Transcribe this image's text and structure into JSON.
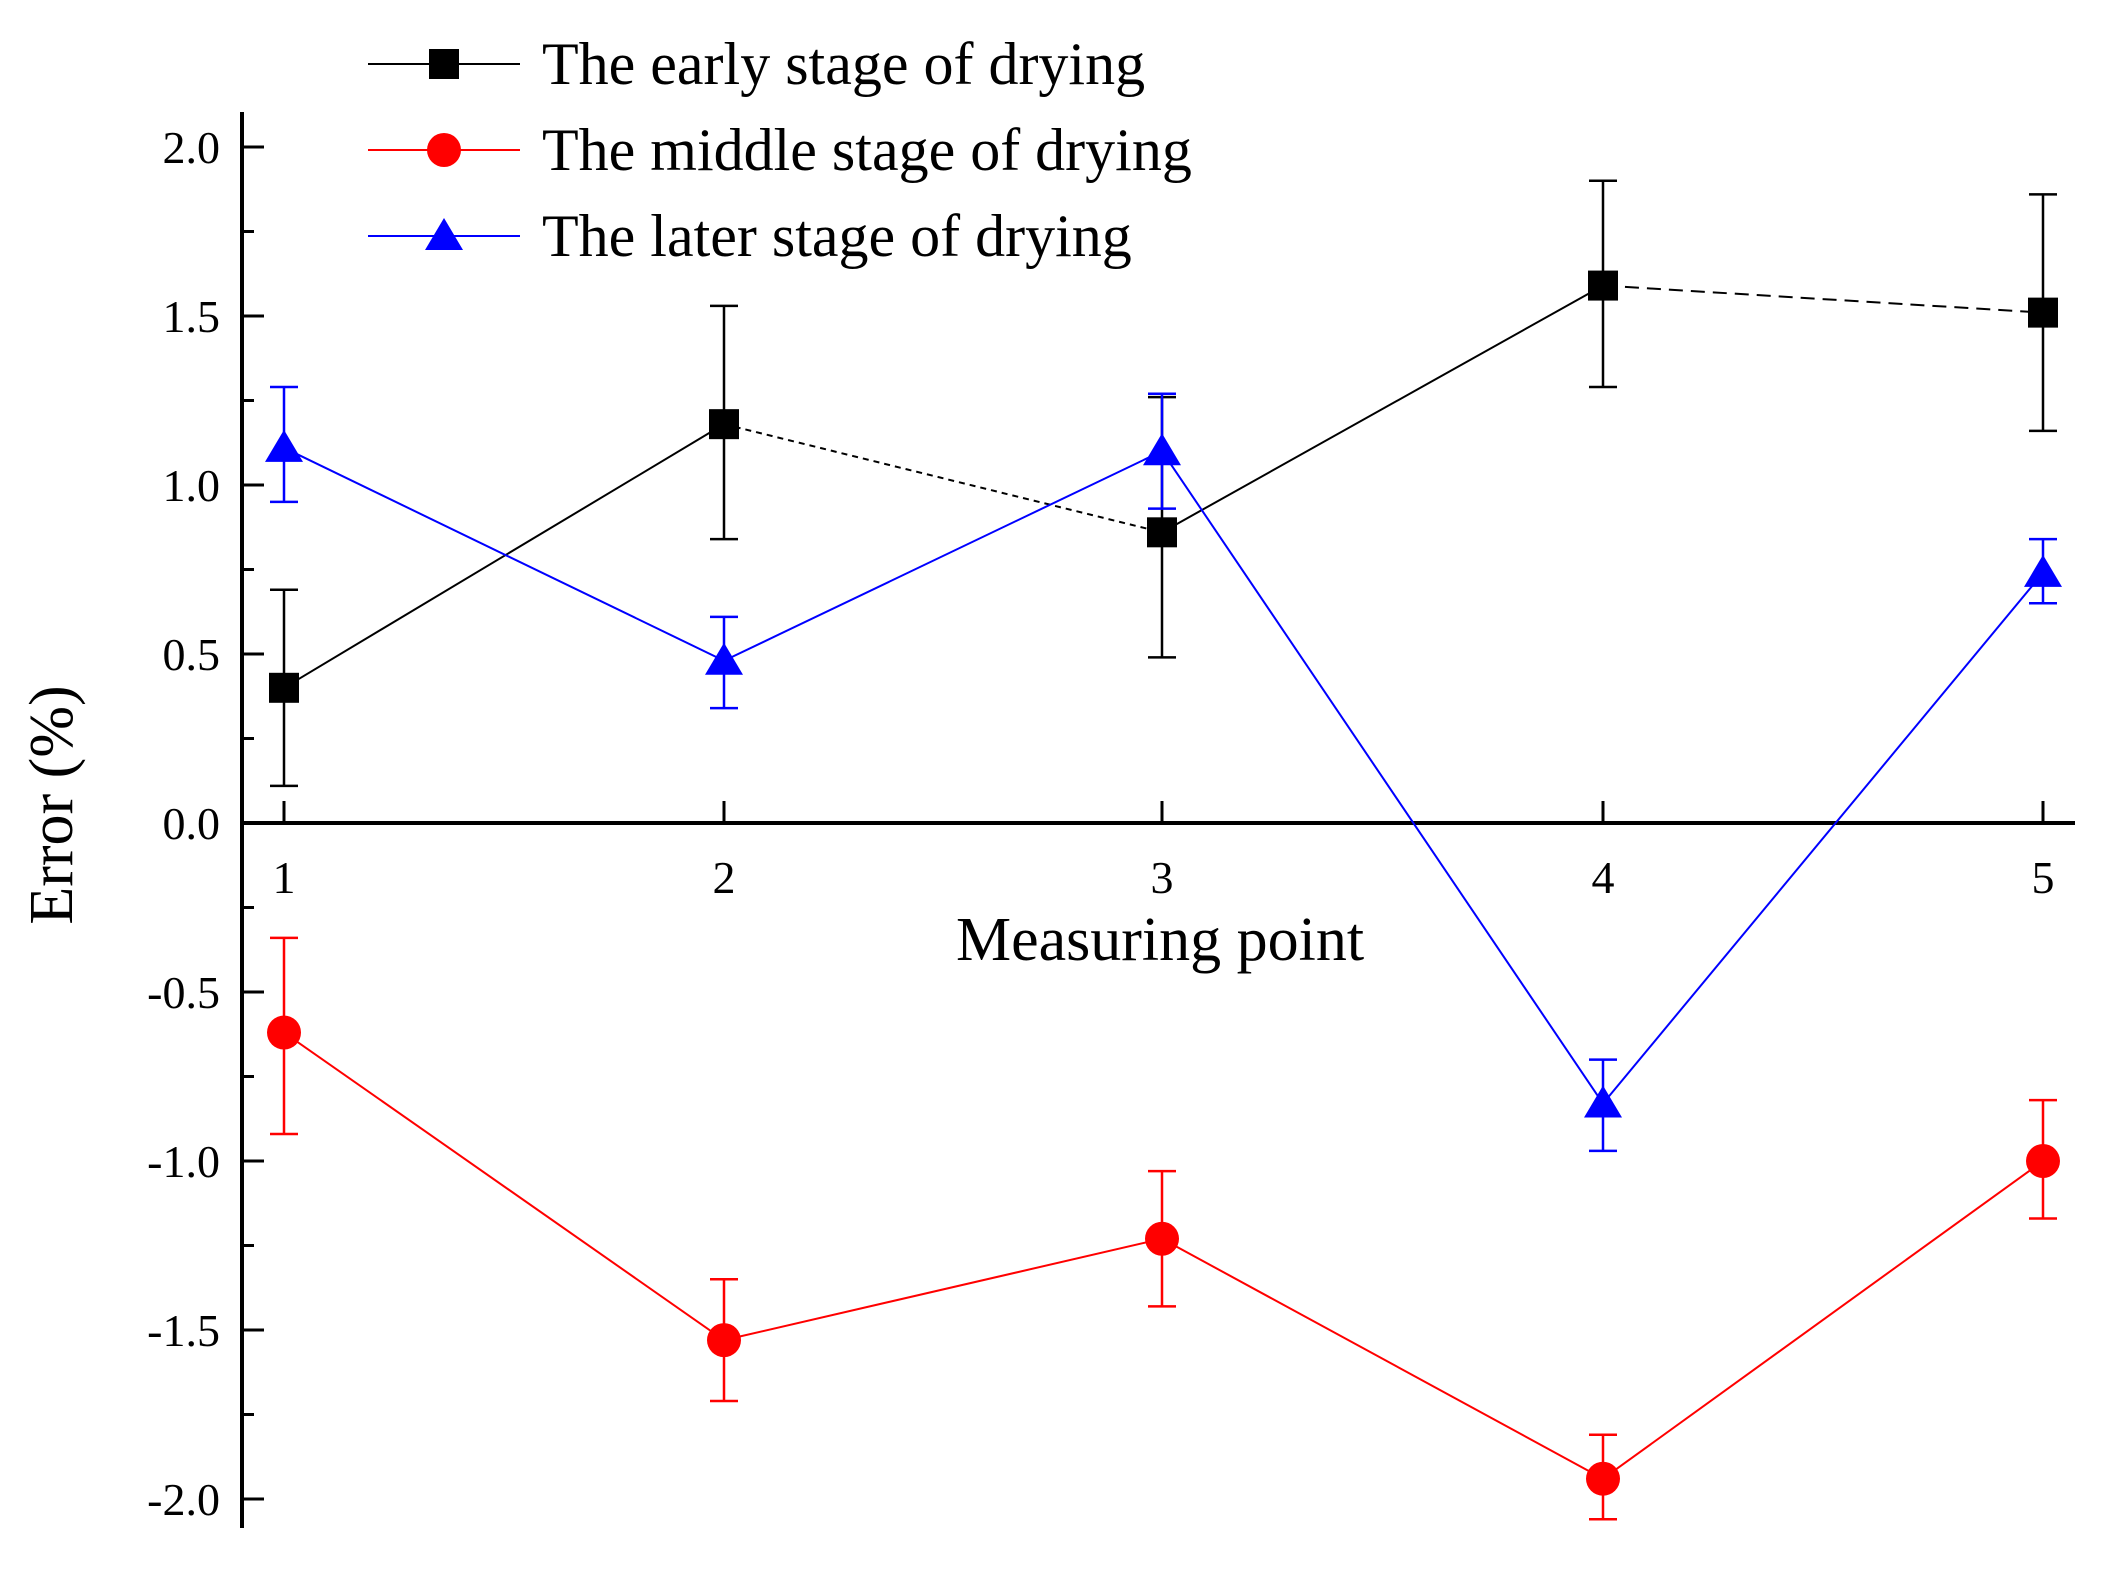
{
  "chart_data": {
    "type": "line",
    "xlabel": "Measuring point",
    "ylabel": "Error (%)",
    "x": [
      1,
      2,
      3,
      4,
      5
    ],
    "x_tick_labels": [
      "1",
      "2",
      "3",
      "4",
      "5"
    ],
    "y_ticks": [
      2.0,
      1.5,
      1.0,
      0.5,
      0.0,
      -0.5,
      -1.0,
      -1.5,
      -2.0
    ],
    "y_tick_labels": [
      "2.0",
      "1.5",
      "1.0",
      "0.5",
      "0.0",
      "-0.5",
      "-1.0",
      "-1.5",
      "-2.0"
    ],
    "ylim": [
      -2.1,
      2.1
    ],
    "xlim": [
      0.9,
      5.1
    ],
    "grid": false,
    "legend_position": "top-left",
    "error_bars": true,
    "series": [
      {
        "name": "The early stage of drying",
        "color": "#000000",
        "marker": "square",
        "line_style": "mixed solid/dashed",
        "values": [
          0.4,
          1.18,
          0.86,
          1.59,
          1.51
        ],
        "error_upper": [
          0.69,
          1.53,
          1.26,
          1.9,
          1.86
        ],
        "error_lower": [
          0.11,
          0.84,
          0.49,
          1.29,
          1.16
        ]
      },
      {
        "name": "The middle stage of drying",
        "color": "#ff0000",
        "marker": "circle",
        "line_style": "solid",
        "values": [
          -0.62,
          -1.53,
          -1.23,
          -1.94,
          -1.0
        ],
        "error_upper": [
          -0.34,
          -1.35,
          -1.03,
          -1.81,
          -0.82
        ],
        "error_lower": [
          -0.92,
          -1.71,
          -1.43,
          -2.06,
          -1.17
        ]
      },
      {
        "name": "The later stage of drying",
        "color": "#0000ff",
        "marker": "triangle",
        "line_style": "solid",
        "values": [
          1.11,
          0.48,
          1.1,
          -0.83,
          0.74
        ],
        "error_upper": [
          1.29,
          0.61,
          1.27,
          -0.7,
          0.84
        ],
        "error_lower": [
          0.95,
          0.34,
          0.93,
          -0.97,
          0.65
        ]
      }
    ]
  }
}
